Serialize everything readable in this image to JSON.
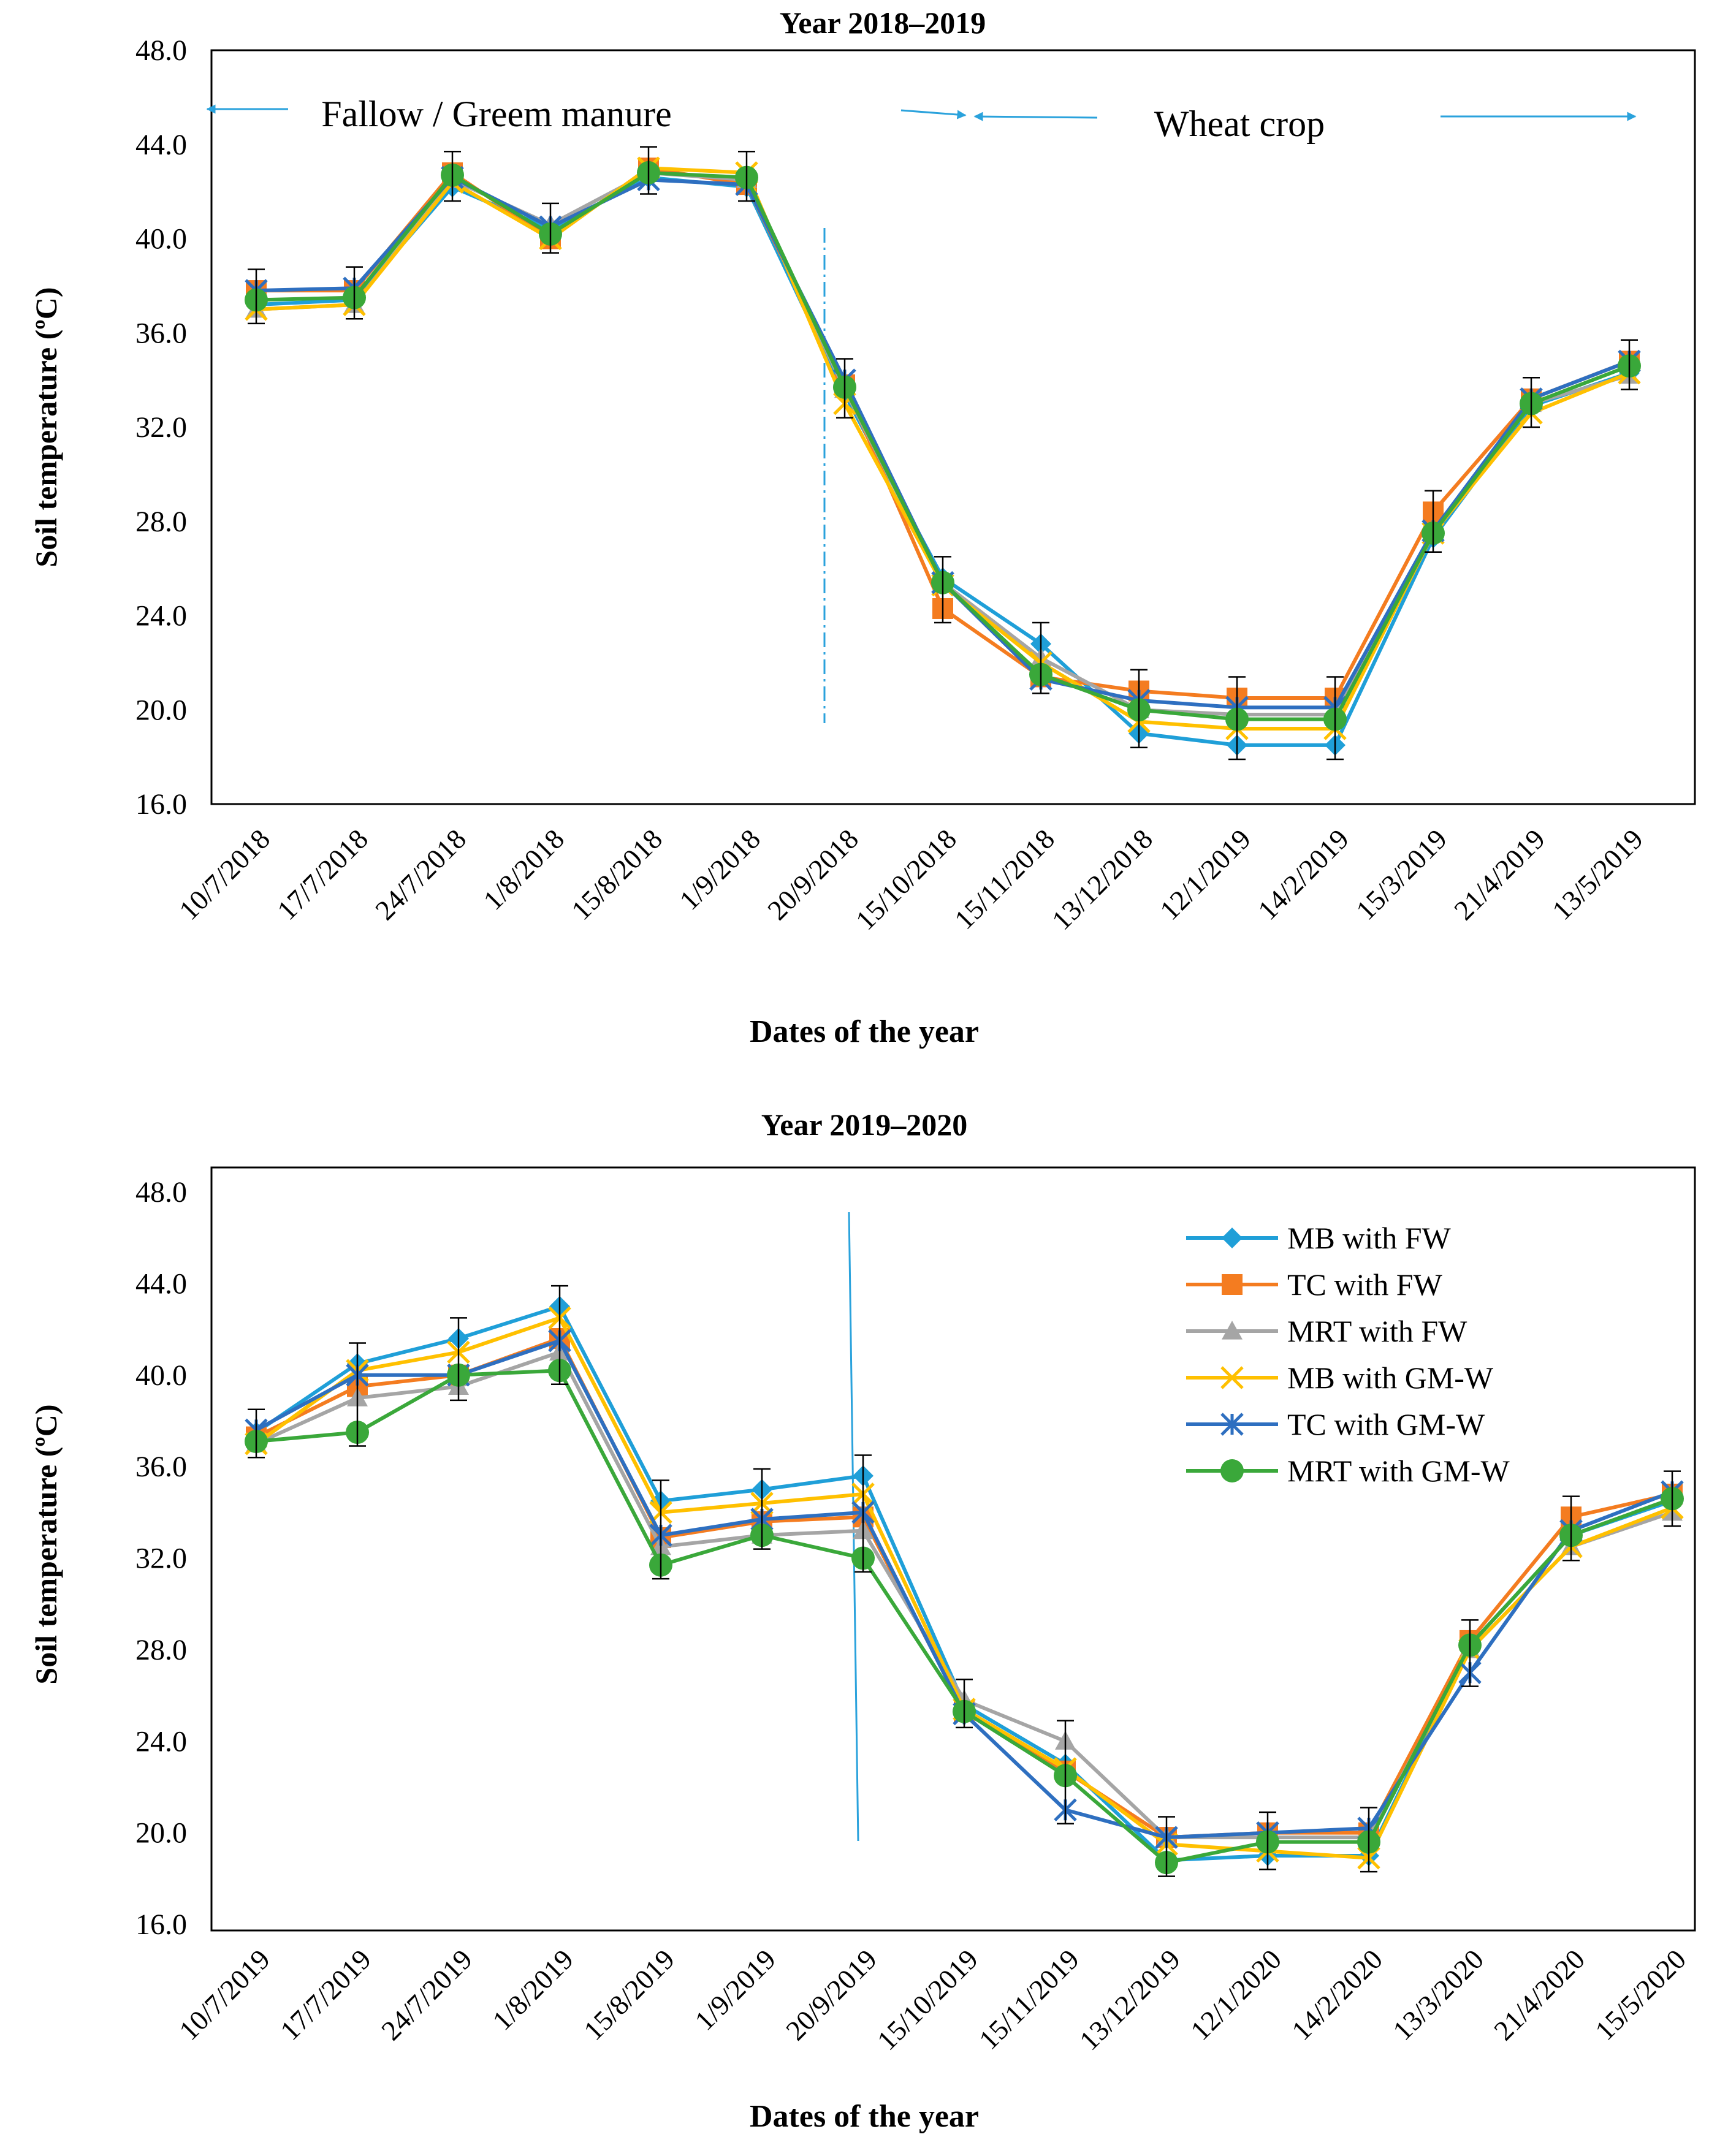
{
  "chart_data": [
    {
      "type": "line",
      "title": "Year 2018–2019",
      "xlabel": "Dates of the year",
      "ylabel": "Soil temperature (ºC)",
      "ylim": [
        16.0,
        48.0
      ],
      "yticks": [
        "16.0",
        "20.0",
        "24.0",
        "28.0",
        "32.0",
        "36.0",
        "40.0",
        "44.0",
        "48.0"
      ],
      "grid": false,
      "categories": [
        "10/7/2018",
        "17/7/2018",
        "24/7/2018",
        "1/8/2018",
        "15/8/2018",
        "1/9/2018",
        "20/9/2018",
        "15/10/2018",
        "15/11/2018",
        "13/12/2018",
        "12/1/2019",
        "14/2/2019",
        "15/3/2019",
        "21/4/2019",
        "13/5/2019"
      ],
      "series": [
        {
          "name": "MB with FW",
          "values": [
            37.2,
            37.4,
            42.2,
            40.4,
            42.6,
            42.2,
            33.4,
            25.6,
            22.8,
            19.0,
            18.5,
            18.5,
            27.3,
            32.9,
            34.3
          ]
        },
        {
          "name": "TC with FW",
          "values": [
            37.8,
            37.8,
            42.8,
            40.0,
            43.0,
            42.3,
            33.8,
            24.3,
            21.4,
            20.8,
            20.5,
            20.5,
            28.4,
            33.2,
            34.8
          ]
        },
        {
          "name": "MRT with FW",
          "values": [
            37.0,
            37.2,
            42.5,
            40.6,
            42.8,
            42.5,
            33.6,
            25.4,
            22.2,
            20.0,
            19.8,
            19.8,
            27.6,
            33.0,
            34.2
          ]
        },
        {
          "name": "MB with GM-W",
          "values": [
            37.0,
            37.2,
            42.4,
            40.0,
            43.0,
            42.8,
            33.0,
            25.3,
            22.0,
            19.5,
            19.2,
            19.2,
            27.5,
            32.6,
            34.3
          ]
        },
        {
          "name": "TC with GM-W",
          "values": [
            37.8,
            37.9,
            42.6,
            40.5,
            42.5,
            42.3,
            34.0,
            25.4,
            21.3,
            20.4,
            20.1,
            20.1,
            27.6,
            33.2,
            34.8
          ]
        },
        {
          "name": "MRT with GM-W",
          "values": [
            37.4,
            37.5,
            42.7,
            40.2,
            42.8,
            42.6,
            33.7,
            25.4,
            21.5,
            20.0,
            19.6,
            19.6,
            27.5,
            33.0,
            34.6
          ]
        }
      ],
      "annotations": {
        "left": "Fallow / Greem manure",
        "right": "Wheat crop"
      }
    },
    {
      "type": "line",
      "title": "Year 2019–2020",
      "xlabel": "Dates of the year",
      "ylabel": "Soil temperature (ºC)",
      "ylim": [
        16.0,
        48.0
      ],
      "yticks": [
        "16.0",
        "20.0",
        "24.0",
        "28.0",
        "32.0",
        "36.0",
        "40.0",
        "44.0",
        "48.0"
      ],
      "grid": false,
      "legend_position": "top-right",
      "categories": [
        "10/7/2019",
        "17/7/2019",
        "24/7/2019",
        "1/8/2019",
        "15/8/2019",
        "1/9/2019",
        "20/9/2019",
        "15/10/2019",
        "15/11/2019",
        "13/12/2019",
        "12/1/2020",
        "14/2/2020",
        "13/3/2020",
        "21/4/2020",
        "15/5/2020"
      ],
      "series": [
        {
          "name": "MB with FW",
          "values": [
            37.5,
            40.5,
            41.6,
            43.0,
            34.5,
            35.0,
            35.6,
            25.6,
            23.0,
            18.8,
            19.0,
            19.0,
            28.2,
            33.0,
            34.5
          ]
        },
        {
          "name": "TC with FW",
          "values": [
            37.3,
            39.5,
            40.0,
            41.6,
            32.9,
            33.6,
            33.8,
            25.3,
            22.7,
            19.8,
            20.0,
            20.0,
            28.4,
            33.8,
            34.8
          ]
        },
        {
          "name": "MRT with FW",
          "values": [
            37.0,
            39.0,
            39.5,
            41.0,
            32.5,
            33.0,
            33.2,
            25.8,
            24.0,
            19.8,
            19.8,
            19.8,
            28.0,
            32.5,
            34.0
          ]
        },
        {
          "name": "MB with GM-W",
          "values": [
            37.0,
            40.2,
            41.0,
            42.5,
            34.0,
            34.4,
            34.8,
            25.4,
            22.8,
            19.5,
            19.2,
            18.9,
            28.0,
            32.5,
            34.2
          ]
        },
        {
          "name": "TC with GM-W",
          "values": [
            37.6,
            40.0,
            40.0,
            41.5,
            33.0,
            33.7,
            34.0,
            25.2,
            21.0,
            19.8,
            20.0,
            20.2,
            27.0,
            33.2,
            34.9
          ]
        },
        {
          "name": "MRT with GM-W",
          "values": [
            37.1,
            37.5,
            40.0,
            40.2,
            31.7,
            33.0,
            32.0,
            25.3,
            22.5,
            18.7,
            19.6,
            19.6,
            28.2,
            33.0,
            34.6
          ]
        }
      ]
    }
  ],
  "series_styles": [
    {
      "color": "#1f9fd8",
      "marker": "diamond"
    },
    {
      "color": "#f47c20",
      "marker": "square"
    },
    {
      "color": "#a5a5a5",
      "marker": "triangle"
    },
    {
      "color": "#ffc000",
      "marker": "x"
    },
    {
      "color": "#2e6fc0",
      "marker": "star"
    },
    {
      "color": "#3aa83a",
      "marker": "circle"
    }
  ],
  "colors": {
    "arrow": "#2aa2dc",
    "divider": "#2aa2dc",
    "frame": "#000000"
  }
}
